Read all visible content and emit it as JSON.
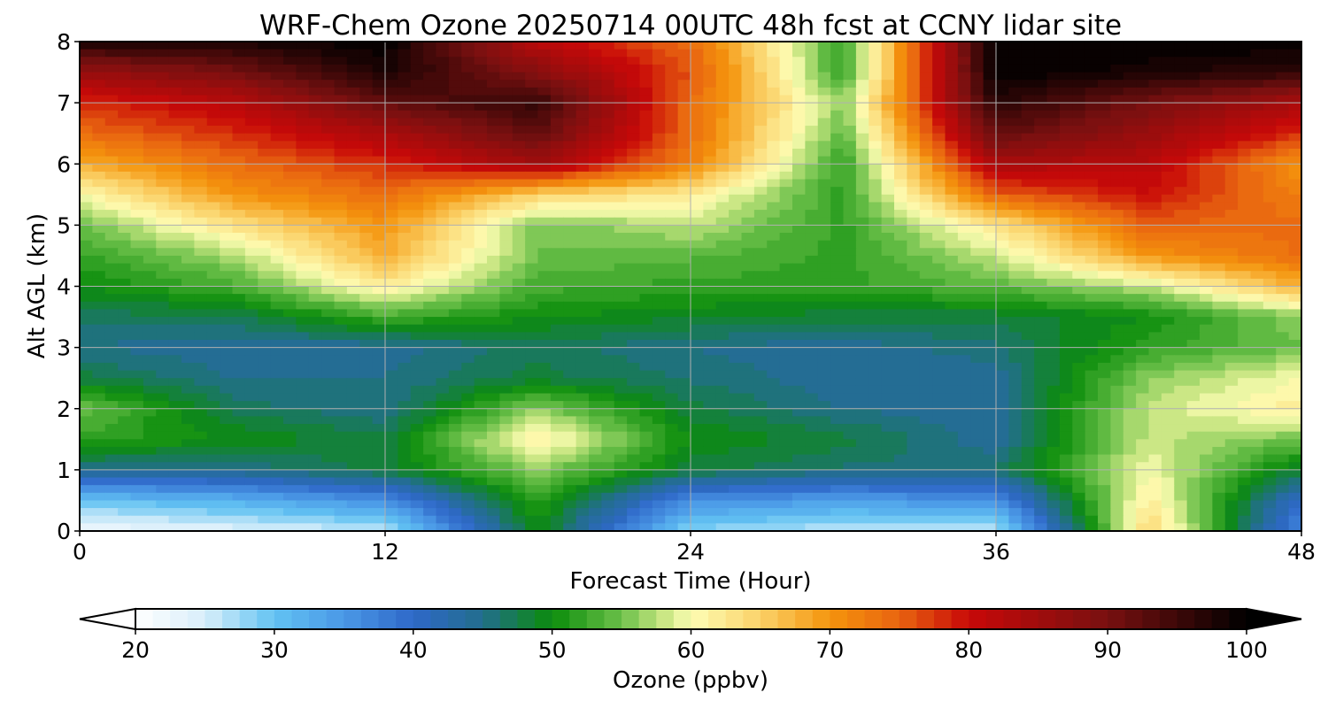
{
  "chart_data": {
    "type": "heatmap",
    "title": "WRF-Chem Ozone  20250714 00UTC 48h fcst at CCNY lidar site",
    "xlabel": "Forecast Time (Hour)",
    "ylabel": "Alt AGL (km)",
    "xlim": [
      0,
      48
    ],
    "ylim": [
      0,
      8
    ],
    "x_ticks": [
      "0",
      "12",
      "24",
      "36",
      "48"
    ],
    "y_ticks": [
      "0",
      "1",
      "2",
      "3",
      "4",
      "5",
      "6",
      "7",
      "8"
    ],
    "grid": true,
    "colorbar": {
      "label": "Ozone  (ppbv)",
      "range": [
        20,
        100
      ],
      "extend": "both",
      "ticks": [
        "20",
        "30",
        "40",
        "50",
        "60",
        "70",
        "80",
        "90",
        "100"
      ],
      "colors": [
        {
          "v": 20,
          "c": "#ffffff"
        },
        {
          "v": 25,
          "c": "#d8eefa"
        },
        {
          "v": 30,
          "c": "#62c2f2"
        },
        {
          "v": 35,
          "c": "#4a98e6"
        },
        {
          "v": 40,
          "c": "#2f68c8"
        },
        {
          "v": 45,
          "c": "#226e8c"
        },
        {
          "v": 50,
          "c": "#0b8c0b"
        },
        {
          "v": 55,
          "c": "#6cc04a"
        },
        {
          "v": 58,
          "c": "#c8e682"
        },
        {
          "v": 60,
          "c": "#fdfdb4"
        },
        {
          "v": 65,
          "c": "#fbd268"
        },
        {
          "v": 70,
          "c": "#f4940c"
        },
        {
          "v": 75,
          "c": "#e86410"
        },
        {
          "v": 80,
          "c": "#c80808"
        },
        {
          "v": 85,
          "c": "#a00c0c"
        },
        {
          "v": 90,
          "c": "#781010"
        },
        {
          "v": 95,
          "c": "#3c0808"
        },
        {
          "v": 100,
          "c": "#000000"
        }
      ]
    },
    "x": [
      0,
      6,
      12,
      18,
      24,
      30,
      36,
      42,
      48
    ],
    "y": [
      0,
      0.5,
      1,
      1.5,
      2,
      2.5,
      3,
      3.5,
      4,
      4.5,
      5,
      5.5,
      6,
      6.5,
      7,
      7.5,
      8
    ],
    "z": [
      [
        22,
        24,
        26,
        50,
        28,
        26,
        26,
        65,
        36
      ],
      [
        30,
        32,
        36,
        52,
        36,
        34,
        36,
        62,
        40
      ],
      [
        45,
        45,
        48,
        56,
        48,
        46,
        46,
        60,
        48
      ],
      [
        52,
        50,
        48,
        62,
        50,
        48,
        44,
        58,
        55
      ],
      [
        55,
        47,
        45,
        56,
        48,
        45,
        44,
        58,
        62
      ],
      [
        48,
        45,
        45,
        48,
        46,
        44,
        44,
        56,
        60
      ],
      [
        45,
        44,
        44,
        47,
        45,
        44,
        46,
        52,
        55
      ],
      [
        47,
        47,
        53,
        50,
        49,
        48,
        48,
        50,
        56
      ],
      [
        50,
        53,
        62,
        53,
        52,
        52,
        54,
        58,
        68
      ],
      [
        52,
        57,
        68,
        55,
        54,
        52,
        58,
        70,
        74
      ],
      [
        55,
        63,
        70,
        55,
        58,
        52,
        63,
        75,
        74
      ],
      [
        60,
        70,
        74,
        65,
        62,
        52,
        75,
        80,
        72
      ],
      [
        68,
        74,
        78,
        85,
        72,
        52,
        84,
        82,
        70
      ],
      [
        74,
        78,
        84,
        92,
        74,
        54,
        92,
        86,
        78
      ],
      [
        78,
        82,
        92,
        96,
        74,
        56,
        97,
        90,
        84
      ],
      [
        86,
        90,
        98,
        88,
        76,
        52,
        100,
        98,
        96
      ],
      [
        98,
        98,
        100,
        82,
        74,
        52,
        100,
        100,
        100
      ]
    ]
  }
}
